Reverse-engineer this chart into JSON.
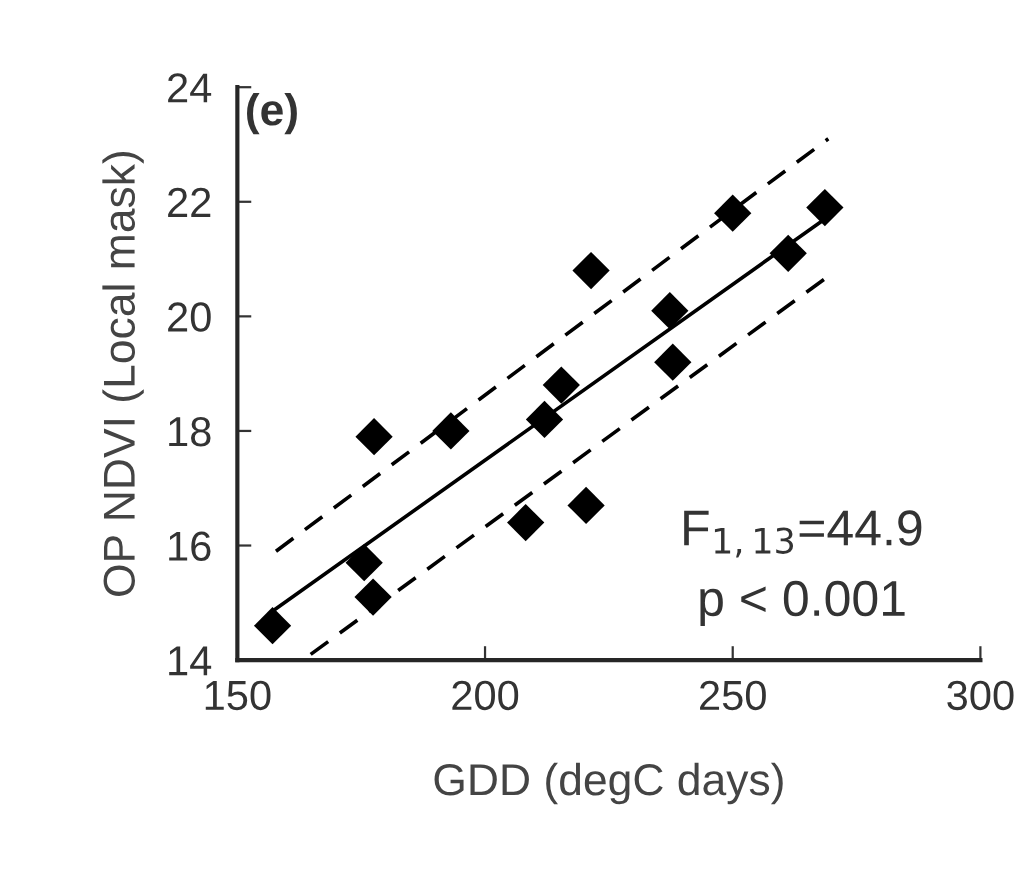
{
  "chart_data": {
    "type": "scatter",
    "xlabel": "GDD (degC days)",
    "ylabel": "OP NDVI (Local mask)",
    "xlim": [
      150,
      300
    ],
    "ylim": [
      14,
      24
    ],
    "xticks": [
      150,
      200,
      250,
      300
    ],
    "yticks": [
      14,
      16,
      18,
      20,
      22,
      24
    ],
    "grid": false,
    "legend": false,
    "series": [
      {
        "color": "#000000",
        "marker": "diamond",
        "x": [
          157.1,
          175.6,
          177.4,
          177.6,
          193.1,
          208.2,
          212.0,
          215.4,
          220.4,
          221.4,
          237.3,
          237.9,
          250.0,
          261.2,
          268.6
        ],
        "values": [
          14.6,
          15.7,
          15.1,
          17.9,
          18.0,
          16.4,
          18.2,
          18.8,
          16.7,
          20.8,
          20.1,
          19.2,
          21.8,
          21.1,
          21.9
        ]
      },
      {
        "type": "line",
        "color": "#000000",
        "line_style": "solid",
        "marker": "none",
        "x": [
          157,
          268.6
        ],
        "values": [
          14.85,
          21.7
        ]
      },
      {
        "type": "line",
        "color": "#000000",
        "line_style": "dashed",
        "marker": "none",
        "x": [
          157.8,
          269.3
        ],
        "values": [
          15.9,
          23.1
        ]
      },
      {
        "type": "line",
        "color": "#000000",
        "line_style": "dashed",
        "marker": "none",
        "x": [
          164.8,
          269.3
        ],
        "values": [
          14.1,
          20.7
        ]
      }
    ],
    "annotations": [
      "(e)",
      "F$_{1,13}$=44.9",
      "p < 0.001"
    ]
  }
}
